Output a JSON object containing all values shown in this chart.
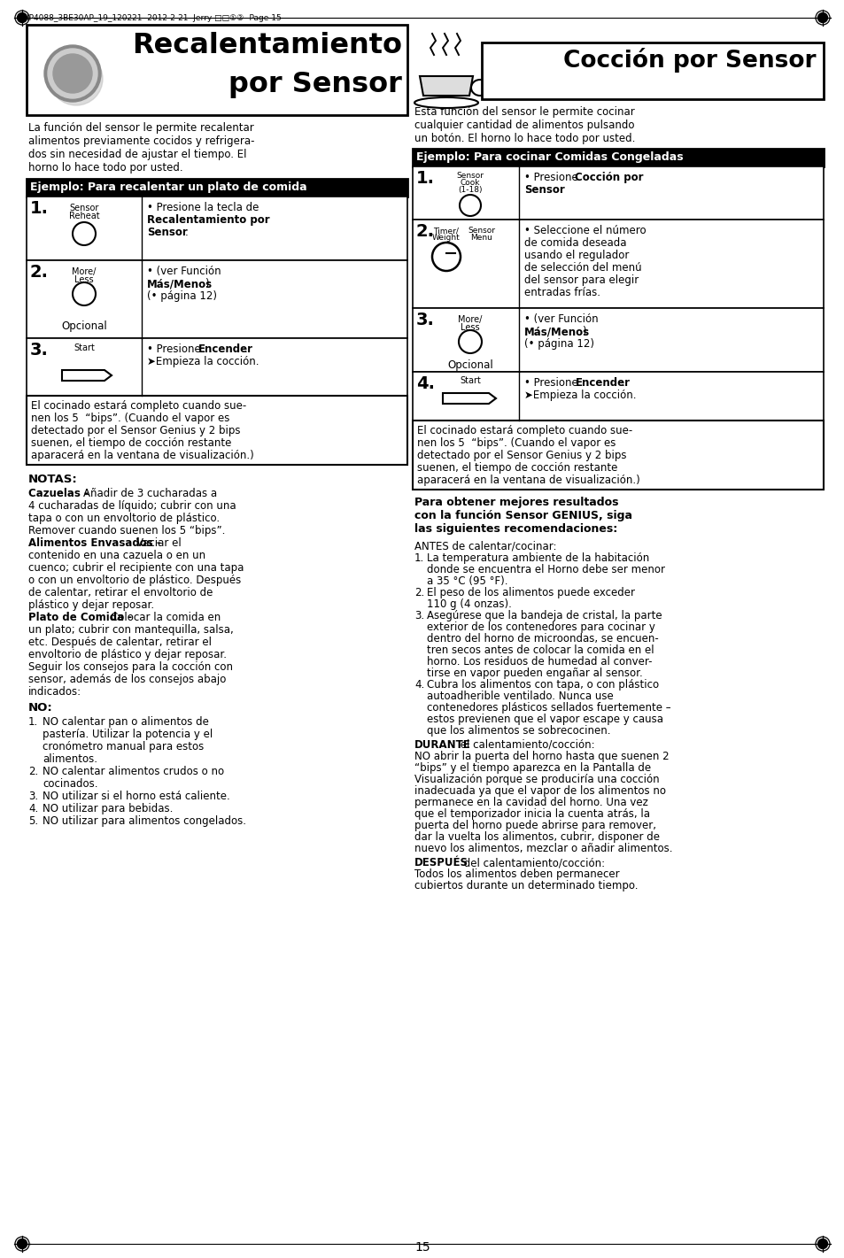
{
  "page_header": "IP4088_3BE30AP_19_120221  2012-2-21  Jerry □□①②- Page 15",
  "page_number": "15",
  "bg_color": "#ffffff",
  "left_title_line1": "Recalentamiento",
  "left_title_line2": "por Sensor",
  "right_title": "Cocción por Sensor",
  "left_intro": "La función del sensor le permite recalentar\nalimentos previamente cocidos y refrigera-\ndos sin necesidad de ajustar el tiempo. El\nhorno lo hace todo por usted.",
  "left_example_header": "Ejemplo: Para recalentar un plato de comida",
  "right_example_header": "Ejemplo: Para cocinar Comidas Congeladas",
  "left_note_box": "El cocinado estará completo cuando sue-\nnen los 5  “bips”. (Cuando el vapor es\ndetectado por el Sensor Genius y 2 bips\nsuenen, el tiempo de cocción restante\naparacerá en la ventana de visualización.)",
  "right_intro": "Esta función del sensor le permite cocinar\ncualquier cantidad de alimentos pulsando\nun botón. El horno lo hace todo por usted.",
  "right_note_box": "El cocinado estará completo cuando sue-\nnen los 5  “bips”. (Cuando el vapor es\ndetectado por el Sensor Genius y 2 bips\nsuenen, el tiempo de cocción restante\naparacerá en la ventana de visualización.)",
  "para_mejores_lines": [
    "Para obtener mejores resultados",
    "con la función Sensor GENIUS, siga",
    "las siguientes recomendaciones:"
  ],
  "antes_header": "ANTES de calentar/cocinar:",
  "antes_items": [
    [
      "La temperatura ambiente de la habitación",
      "donde se encuentra el Horno debe ser menor",
      "a 35 °C (95 °F)."
    ],
    [
      "El peso de los alimentos puede exceder",
      "110 g (4 onzas)."
    ],
    [
      "Asegúrese que la bandeja de cristal, la parte",
      "exterior de los contenedores para cocinar y",
      "dentro del horno de microondas, se encuen-",
      "tren secos antes de colocar la comida en el",
      "horno. Los residuos de humedad al conver-",
      "tirse en vapor pueden engañar al sensor."
    ],
    [
      "Cubra los alimentos con tapa, o con plástico",
      "autoadherible ventilado. Nunca use",
      "contenedores plásticos sellados fuertemente –",
      "estos previenen que el vapor escape y causa",
      "que los alimentos se sobrecocinen."
    ]
  ],
  "durante_bold": "DURANTE",
  "durante_rest": " el calentamiento/cocción:",
  "durante_lines": [
    "NO abrir la puerta del horno hasta que suenen 2",
    "“bips” y el tiempo aparezca en la Pantalla de",
    "Visualización porque se produciría una cocción",
    "inadecuada ya que el vapor de los alimentos no",
    "permanece en la cavidad del horno. Una vez",
    "que el temporizador inicia la cuenta atrás, la",
    "puerta del horno puede abrirse para remover,",
    "dar la vuelta los alimentos, cubrir, disponer de",
    "nuevo los alimentos, mezclar o añadir alimentos."
  ],
  "despues_bold": "DESPUÉS",
  "despues_rest": " del calentamiento/cocción:",
  "despues_lines": [
    "Todos los alimentos deben permanecer",
    "cubiertos durante un determinado tiempo."
  ],
  "notas_header": "NOTAS:",
  "notas_cazuelas_bold": "Cazuelas - ",
  "notas_cazuelas_lines": [
    "Añadir de 3 cucharadas a",
    "4 cucharadas de líquido; cubrir con una",
    "tapa o con un envoltorio de plástico.",
    "Remover cuando suenen los 5 “bips”."
  ],
  "notas_alimentos_bold": "Alimentos Envasados - ",
  "notas_alimentos_lines": [
    "Vaciar el",
    "contenido en una cazuela o en un",
    "cuenco; cubrir el recipiente con una tapa",
    "o con un envoltorio de plástico. Después",
    "de calentar, retirar el envoltorio de",
    "plástico y dejar reposar."
  ],
  "notas_plato_bold": "Plato de Comida - ",
  "notas_plato_lines": [
    "Colocar la comida en",
    "un plato; cubrir con mantequilla, salsa,",
    "etc. Después de calentar, retirar el",
    "envoltorio de plástico y dejar reposar.",
    "Seguir los consejos para la cocción con",
    "sensor, además de los consejos abajo",
    "indicados:"
  ],
  "no_header": "NO:",
  "no_items": [
    [
      "NO calentar pan o alimentos de",
      "pastería. Utilizar la potencia y el",
      "cronómetro manual para estos",
      "alimentos."
    ],
    [
      "NO calentar alimentos crudos o no",
      "cocinados."
    ],
    [
      "NO utilizar si el horno está caliente."
    ],
    [
      "NO utilizar para bebidas."
    ],
    [
      "NO utilizar para alimentos congelados."
    ]
  ]
}
